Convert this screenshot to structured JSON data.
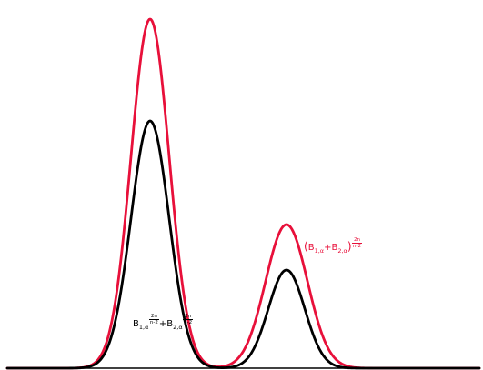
{
  "colors": {
    "black_curve": "#000000",
    "red_curve": "#e8103a",
    "background": "#ffffff"
  },
  "curves": [
    {
      "name": "power-of-sum",
      "color": "#e8103a"
    },
    {
      "name": "sum-of-powers",
      "color": "#000000"
    }
  ],
  "labels": {
    "sum_of_powers": {
      "B": "B",
      "sub1": "1,α",
      "plus": "+",
      "sub2": "2,α",
      "exp_num": "2n",
      "exp_den": "n-2"
    },
    "power_of_sum": {
      "open": "(",
      "B": "B",
      "sub1": "1,α",
      "plus": "+",
      "sub2": "2,α",
      "close": ")",
      "exp_num": "2n",
      "exp_den": "n-2"
    }
  }
}
